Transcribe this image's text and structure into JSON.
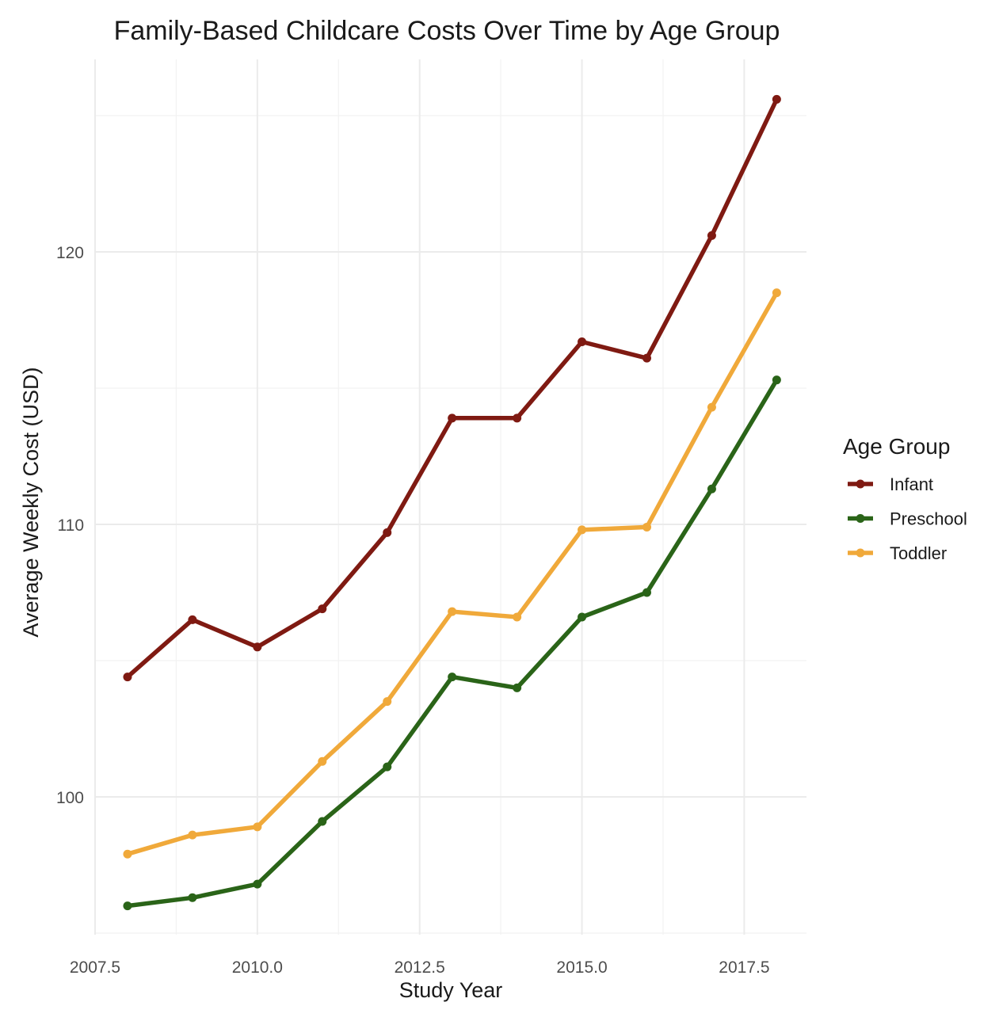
{
  "chart_data": {
    "type": "line",
    "title": "Family-Based Childcare Costs Over Time by Age Group",
    "xlabel": "Study Year",
    "ylabel": "Average Weekly Cost (USD)",
    "x": [
      2008,
      2009,
      2010,
      2011,
      2012,
      2013,
      2014,
      2015,
      2016,
      2017,
      2018
    ],
    "xlim": [
      2008,
      2018
    ],
    "ylim": [
      96,
      126
    ],
    "x_ticks": [
      2007.5,
      2010.0,
      2012.5,
      2015.0,
      2017.5
    ],
    "x_tick_labels": [
      "2007.5",
      "2010.0",
      "2012.5",
      "2015.0",
      "2017.5"
    ],
    "y_ticks": [
      100,
      110,
      120
    ],
    "y_tick_labels": [
      "100",
      "110",
      "120"
    ],
    "grid": true,
    "legend": {
      "title": "Age Group",
      "position": "right"
    },
    "series": [
      {
        "name": "Infant",
        "color": "#7f1a12",
        "values": [
          104.4,
          106.5,
          105.5,
          106.9,
          109.7,
          113.9,
          113.9,
          116.7,
          116.1,
          120.6,
          125.6
        ]
      },
      {
        "name": "Preschool",
        "color": "#2a6418",
        "values": [
          96.0,
          96.3,
          96.8,
          99.1,
          101.1,
          104.4,
          104.0,
          106.6,
          107.5,
          111.3,
          115.3
        ]
      },
      {
        "name": "Toddler",
        "color": "#f0a93a",
        "values": [
          97.9,
          98.6,
          98.9,
          101.3,
          103.5,
          106.8,
          106.6,
          109.8,
          109.9,
          114.3,
          118.5
        ]
      }
    ]
  }
}
